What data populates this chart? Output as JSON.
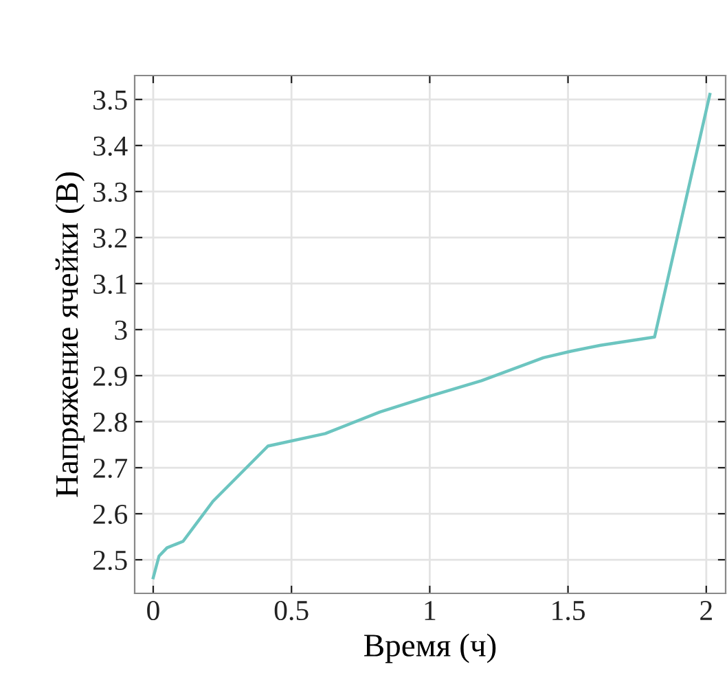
{
  "chart_data": {
    "type": "line",
    "xlabel": "Время (ч)",
    "ylabel": "Напряжение ячейки (В)",
    "x": [
      0,
      0.021,
      0.05,
      0.108,
      0.216,
      0.415,
      0.622,
      0.82,
      1.004,
      1.187,
      1.411,
      1.51,
      1.618,
      1.813,
      2.013
    ],
    "series": [
      {
        "color": "#6cc5c0",
        "values": [
          2.461,
          2.508,
          2.526,
          2.54,
          2.627,
          2.747,
          2.774,
          2.821,
          2.856,
          2.889,
          2.939,
          2.953,
          2.966,
          2.984,
          3.511
        ]
      }
    ],
    "xlim": [
      -0.067,
      2.07
    ],
    "ylim": [
      2.427,
      3.552
    ],
    "xticks": [
      0,
      0.5,
      1,
      1.5,
      2
    ],
    "yticks": [
      2.5,
      2.6,
      2.7,
      2.8,
      2.9,
      3,
      3.1,
      3.2,
      3.3,
      3.4,
      3.5
    ],
    "grid": true,
    "marker": "none",
    "line_style": "solid"
  }
}
